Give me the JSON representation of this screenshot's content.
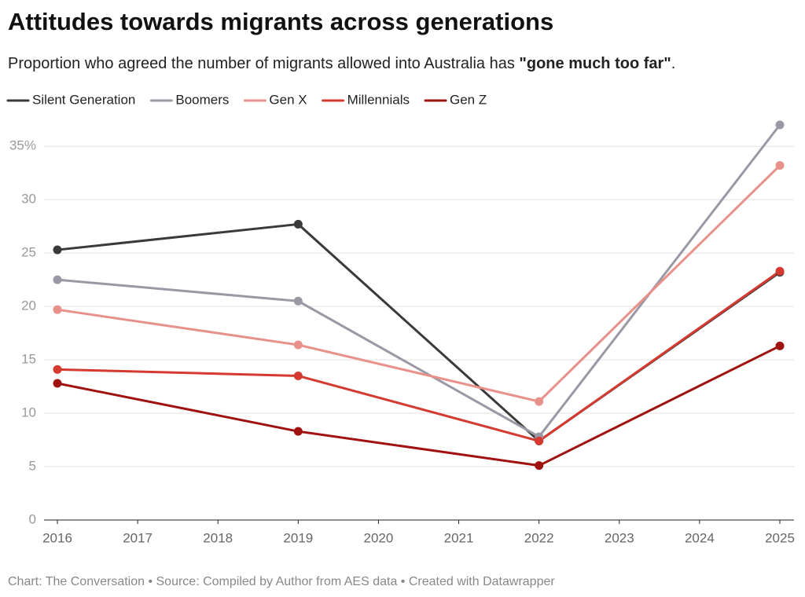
{
  "chart_data": {
    "type": "line",
    "title": "Attitudes towards migrants across generations",
    "subtitle": [
      "Proportion who agreed the number of migrants allowed into Australia has ",
      "\"gone much too far\"",
      "."
    ],
    "x": [
      2016,
      2019,
      2022,
      2025
    ],
    "xlim": [
      2016,
      2025
    ],
    "xticks": [
      2016,
      2017,
      2018,
      2019,
      2020,
      2021,
      2022,
      2023,
      2024,
      2025
    ],
    "ylim": [
      0,
      37
    ],
    "yticks": [
      0,
      5,
      10,
      15,
      20,
      25,
      30,
      {
        "value": 35,
        "label": "35%"
      }
    ],
    "grid": true,
    "series": [
      {
        "name": "Silent Generation",
        "color": "#3a3a3a",
        "values": [
          25.3,
          27.7,
          7.4,
          23.2
        ]
      },
      {
        "name": "Boomers",
        "color": "#9b98a6",
        "values": [
          22.5,
          20.5,
          7.8,
          37.0
        ]
      },
      {
        "name": "Gen X",
        "color": "#e8918b",
        "values": [
          19.7,
          16.4,
          11.1,
          33.2
        ]
      },
      {
        "name": "Millennials",
        "color": "#d43a2f",
        "values": [
          14.1,
          13.5,
          7.4,
          23.3
        ]
      },
      {
        "name": "Gen Z",
        "color": "#a0120f",
        "values": [
          12.8,
          8.3,
          5.1,
          16.3
        ]
      }
    ],
    "footer": "Chart: The Conversation • Source: Compiled by Author from AES data • Created with Datawrapper"
  }
}
